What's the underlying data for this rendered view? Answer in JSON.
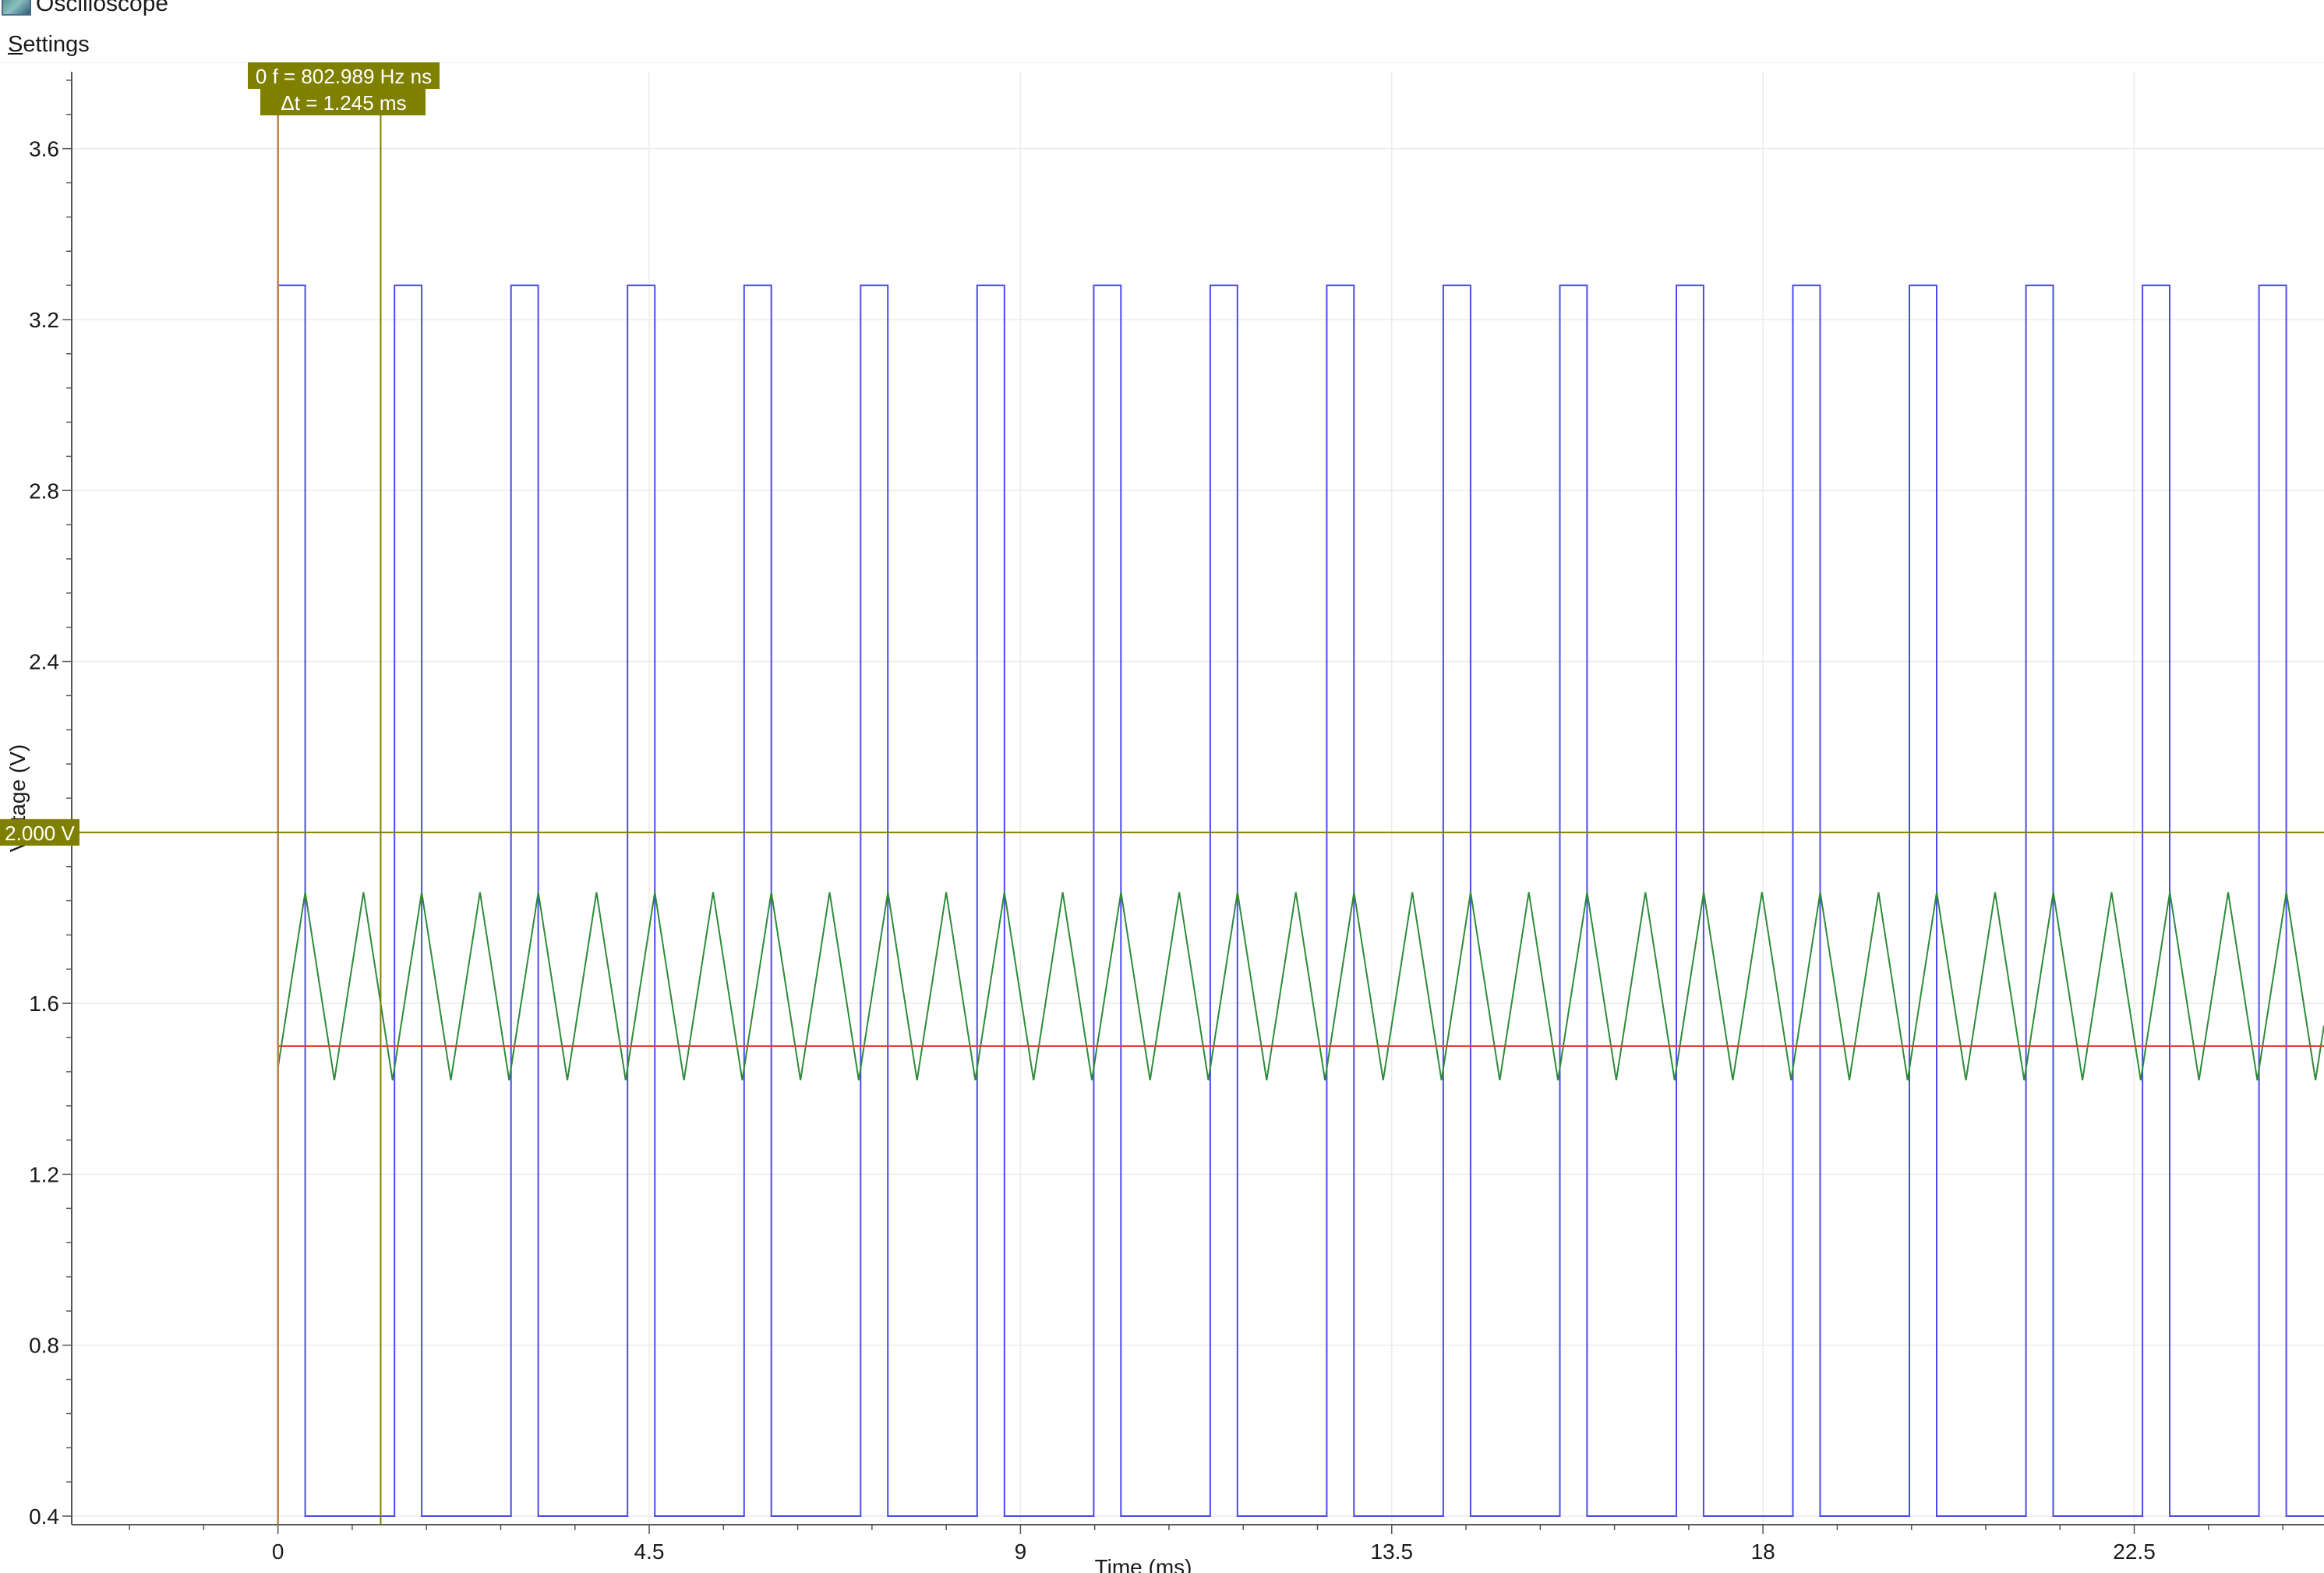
{
  "window": {
    "title": "Oscilloscope",
    "icon": "oscilloscope-app-icon"
  },
  "menu": {
    "settings_label": "Settings",
    "settings_mnemonic": "S",
    "settings_rest": "ettings"
  },
  "cursors": {
    "readout_line1": "0 f = 802.989 Hz ns",
    "readout_line2": "Δt = 1.245 ms",
    "t1_ms": 0,
    "t2_ms": 1.245,
    "frequency_hz": 802.989,
    "voltage_marker_value": 2.0,
    "voltage_marker_label": "2.000 V",
    "color": "#808000",
    "t1_color": "#b8864a"
  },
  "chart_data": {
    "type": "line",
    "xlabel": "Time (ms)",
    "ylabel": "Voltage (V)",
    "xlim": [
      -2.5,
      24.8
    ],
    "ylim": [
      0.38,
      3.78
    ],
    "x_ticks": [
      0,
      4.5,
      9,
      13.5,
      18,
      22.5
    ],
    "x_tick_labels": [
      "0",
      "4.5",
      "9",
      "13.5",
      "18",
      "22.5"
    ],
    "y_ticks": [
      0.4,
      0.8,
      1.2,
      1.6,
      2.0,
      2.4,
      2.8,
      3.2,
      3.6
    ],
    "y_tick_labels": [
      "0.4",
      "0.8",
      "1.2",
      "1.6",
      "",
      "2.4",
      "2.8",
      "3.2",
      "3.6"
    ],
    "grid": true,
    "series": [
      {
        "name": "",
        "kind": "square",
        "color": "#4a4af0",
        "x_start": 0,
        "x_end": 24.8,
        "period_ms": 1.4125,
        "high_duration_ms": 0.33,
        "high": 3.28,
        "low": 0.4
      },
      {
        "name": "",
        "kind": "triangle",
        "color": "#2e8b3a",
        "x_start": 0,
        "x_end": 24.8,
        "period_ms": 0.7063,
        "first_peak_ms": 0.33,
        "max": 1.86,
        "min": 1.42,
        "start_value": 1.45
      },
      {
        "name": "",
        "kind": "constant",
        "color": "#e83a3a",
        "x_start": 0,
        "x_end": 24.8,
        "value": 1.5
      }
    ]
  }
}
